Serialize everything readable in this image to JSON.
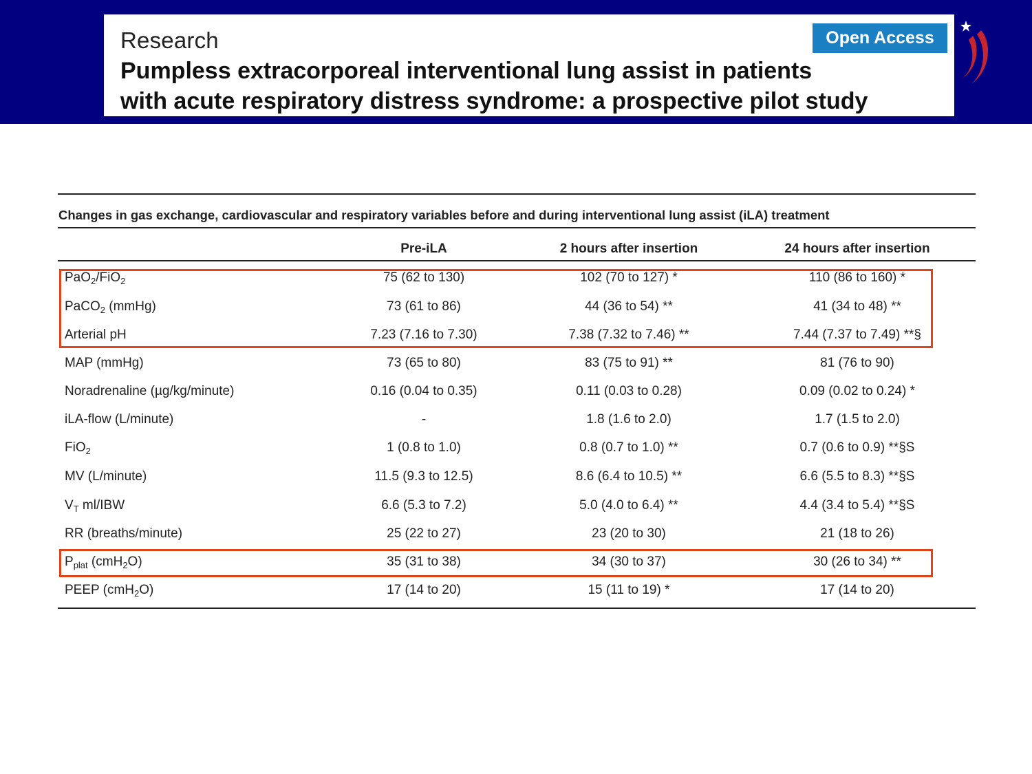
{
  "header": {
    "section": "Research",
    "badge": "Open Access",
    "title_line1": "Pumpless extracorporeal interventional lung assist in patients",
    "title_line2": "with acute respiratory distress syndrome: a prospective pilot study"
  },
  "table": {
    "caption": "Changes in gas exchange, cardiovascular and respiratory variables before and during interventional lung assist (iLA) treatment",
    "columns": [
      "Pre-iLA",
      "2 hours after insertion",
      "24 hours after insertion"
    ],
    "rows": [
      {
        "label_pre": "PaO",
        "label_sub": "2",
        "label_mid": "/FiO",
        "label_sub2": "2",
        "label_post": "",
        "values": [
          "75 (62 to 130)",
          "102 (70 to 127) *",
          "110 (86 to 160) *"
        ]
      },
      {
        "label_pre": "PaCO",
        "label_sub": "2",
        "label_mid": " (mmHg)",
        "label_sub2": "",
        "label_post": "",
        "values": [
          "73 (61 to 86)",
          "44 (36 to 54) **",
          "41 (34 to 48) **"
        ]
      },
      {
        "label_pre": "Arterial pH",
        "label_sub": "",
        "label_mid": "",
        "label_sub2": "",
        "label_post": "",
        "values": [
          "7.23 (7.16 to 7.30)",
          "7.38 (7.32 to 7.46) **",
          "7.44 (7.37 to 7.49) **§"
        ]
      },
      {
        "label_pre": "MAP (mmHg)",
        "label_sub": "",
        "label_mid": "",
        "label_sub2": "",
        "label_post": "",
        "values": [
          "73 (65 to 80)",
          "83 (75 to 91) **",
          "81 (76 to 90)"
        ]
      },
      {
        "label_pre": "Noradrenaline (µg/kg/minute)",
        "label_sub": "",
        "label_mid": "",
        "label_sub2": "",
        "label_post": "",
        "values": [
          "0.16 (0.04 to 0.35)",
          "0.11 (0.03 to 0.28)",
          "0.09 (0.02 to 0.24) *"
        ]
      },
      {
        "label_pre": "iLA-flow (L/minute)",
        "label_sub": "",
        "label_mid": "",
        "label_sub2": "",
        "label_post": "",
        "values": [
          "-",
          "1.8 (1.6 to 2.0)",
          "1.7 (1.5 to 2.0)"
        ]
      },
      {
        "label_pre": "FiO",
        "label_sub": "2",
        "label_mid": "",
        "label_sub2": "",
        "label_post": "",
        "values": [
          "1 (0.8 to 1.0)",
          "0.8 (0.7 to 1.0) **",
          "0.7 (0.6 to 0.9) **§S"
        ]
      },
      {
        "label_pre": "MV (L/minute)",
        "label_sub": "",
        "label_mid": "",
        "label_sub2": "",
        "label_post": "",
        "values": [
          "11.5 (9.3 to 12.5)",
          "8.6 (6.4 to 10.5) **",
          "6.6 (5.5 to 8.3) **§S"
        ]
      },
      {
        "label_pre": "V",
        "label_sub": "T",
        "label_mid": " ml/IBW",
        "label_sub2": "",
        "label_post": "",
        "values": [
          "6.6 (5.3 to 7.2)",
          "5.0 (4.0 to 6.4) **",
          "4.4 (3.4 to 5.4) **§S"
        ]
      },
      {
        "label_pre": "RR (breaths/minute)",
        "label_sub": "",
        "label_mid": "",
        "label_sub2": "",
        "label_post": "",
        "values": [
          "25 (22 to 27)",
          "23 (20 to 30)",
          "21 (18 to 26)"
        ]
      },
      {
        "label_pre": "P",
        "label_sub": "plat",
        "label_mid": " (cmH",
        "label_sub2": "2",
        "label_post": "O)",
        "values": [
          "35 (31 to 38)",
          "34 (30 to 37)",
          "30 (26 to 34) **"
        ]
      },
      {
        "label_pre": "PEEP (cmH",
        "label_sub": "2",
        "label_mid": "O)",
        "label_sub2": "",
        "label_post": "",
        "values": [
          "17 (14 to 20)",
          "15 (11 to 19) *",
          "17 (14 to 20)"
        ]
      }
    ]
  },
  "colors": {
    "banner": "#020080",
    "badge": "#1b7fc4",
    "highlight": "#e0441a"
  }
}
